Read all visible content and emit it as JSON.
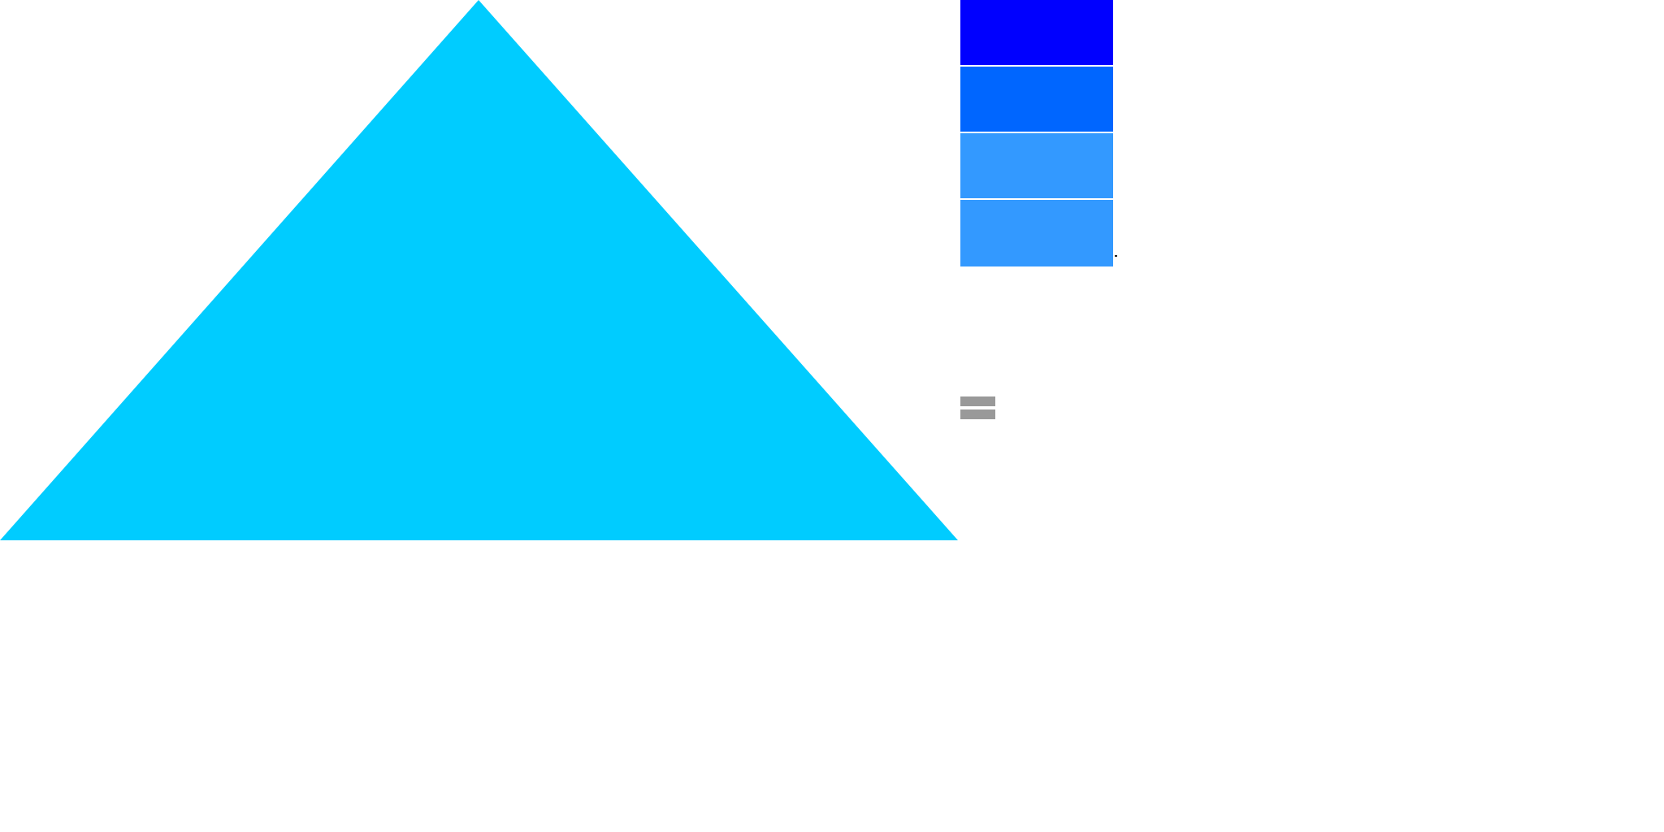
{
  "canvas": {
    "background": "#ffffff"
  },
  "triangle": {
    "color": "#00ccff"
  },
  "swatches": [
    {
      "color": "#0000ff"
    },
    {
      "color": "#0066ff"
    },
    {
      "color": "#3399ff"
    },
    {
      "color": "#3399ff"
    }
  ],
  "menu_icon": {
    "icon": "hamburger-menu-icon",
    "color": "#999999"
  },
  "dot": {
    "color": "#222222"
  }
}
